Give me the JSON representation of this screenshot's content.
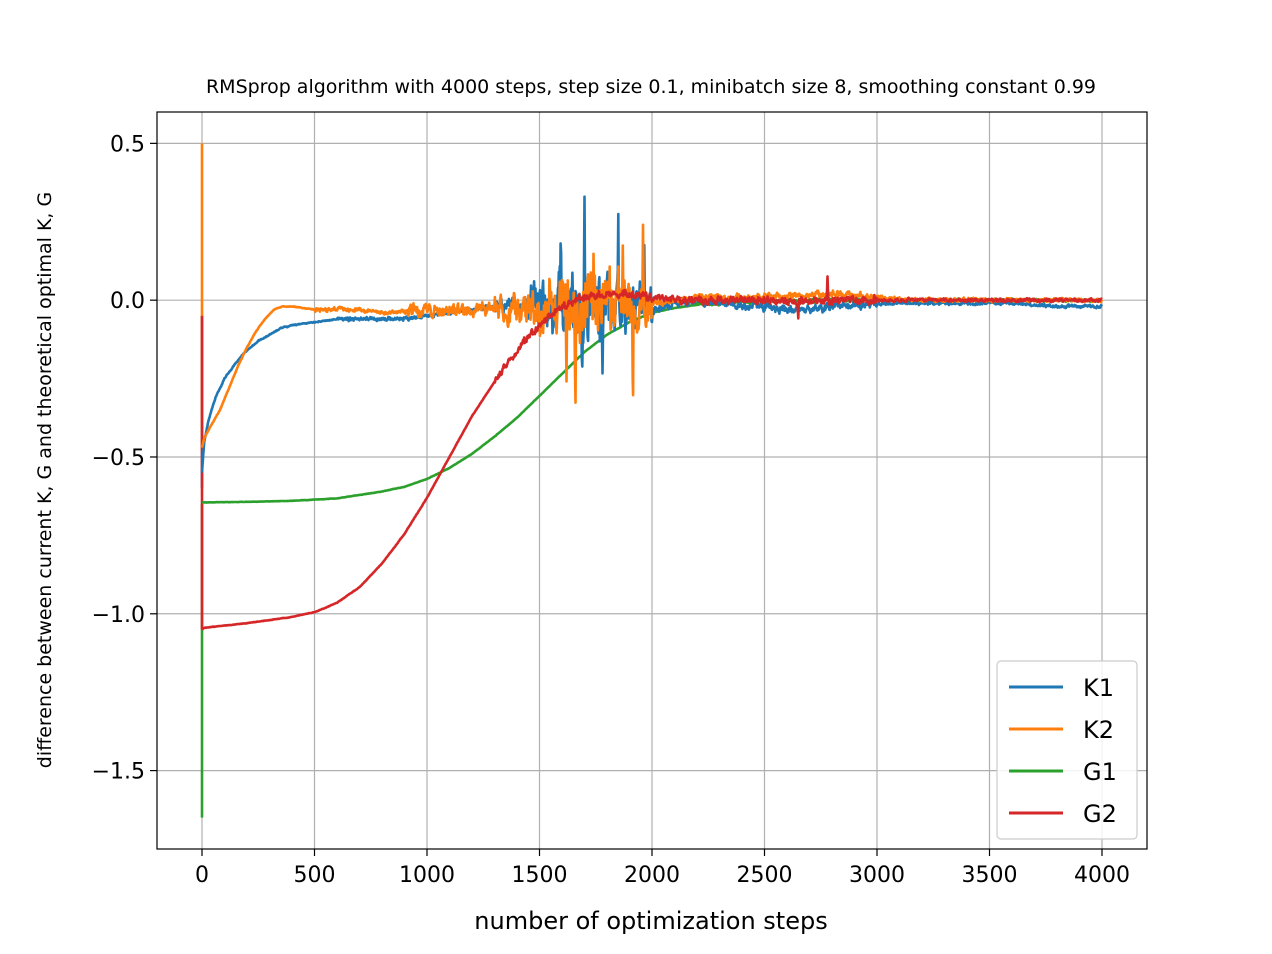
{
  "chart_data": {
    "type": "line",
    "title": "RMSprop algorithm with 4000 steps, step size 0.1, minibatch size 8, smoothing constant 0.99",
    "xlabel": "number of optimization steps",
    "ylabel": "difference between current K, G and theoretical optimal K, G",
    "xlim": [
      -200,
      4200
    ],
    "ylim": [
      -1.75,
      0.6
    ],
    "xticks": [
      0,
      500,
      1000,
      1500,
      2000,
      2500,
      3000,
      3500,
      4000
    ],
    "xtick_labels": [
      "0",
      "500",
      "1000",
      "1500",
      "2000",
      "2500",
      "3000",
      "3500",
      "4000"
    ],
    "yticks": [
      0.5,
      0.0,
      -0.5,
      -1.0,
      -1.5
    ],
    "ytick_labels": [
      "0.5",
      "0.0",
      "−0.5",
      "−1.0",
      "−1.5"
    ],
    "grid": true,
    "legend_position": "lower right",
    "series": [
      {
        "name": "K1",
        "color": "#1f77b4",
        "noise_profile": "K1",
        "x": [
          0,
          10,
          30,
          60,
          100,
          150,
          200,
          250,
          300,
          350,
          400,
          500,
          600,
          700,
          800,
          900,
          1000,
          1100,
          1200,
          1300,
          1400,
          1500,
          1600,
          1700,
          1800,
          1900,
          2000,
          2100,
          2200,
          2300,
          2400,
          2500,
          2600,
          2700,
          2800,
          2900,
          3000,
          3200,
          3400,
          3600,
          3800,
          4000
        ],
        "values": [
          -0.55,
          -0.45,
          -0.38,
          -0.31,
          -0.25,
          -0.2,
          -0.16,
          -0.13,
          -0.11,
          -0.09,
          -0.08,
          -0.07,
          -0.06,
          -0.06,
          -0.06,
          -0.06,
          -0.05,
          -0.04,
          -0.03,
          -0.02,
          -0.01,
          -0.01,
          -0.02,
          -0.02,
          -0.03,
          -0.03,
          -0.03,
          -0.01,
          0.0,
          -0.01,
          -0.02,
          -0.02,
          -0.03,
          -0.03,
          -0.02,
          -0.02,
          -0.01,
          -0.01,
          -0.01,
          -0.01,
          -0.02,
          -0.02
        ]
      },
      {
        "name": "K2",
        "color": "#ff7f0e",
        "noise_profile": "K2",
        "x": [
          0,
          10,
          40,
          80,
          120,
          160,
          200,
          240,
          280,
          320,
          360,
          400,
          500,
          600,
          700,
          800,
          1000,
          1200,
          1400,
          1500,
          1600,
          1700,
          1800,
          1900,
          2000,
          2200,
          2400,
          2600,
          2800,
          3000,
          3200,
          3400,
          3600,
          3800,
          4000
        ],
        "values": [
          -0.47,
          -0.44,
          -0.4,
          -0.35,
          -0.28,
          -0.21,
          -0.15,
          -0.1,
          -0.06,
          -0.03,
          -0.02,
          -0.02,
          -0.03,
          -0.03,
          -0.03,
          -0.04,
          -0.03,
          -0.03,
          -0.03,
          -0.03,
          -0.02,
          -0.01,
          -0.01,
          -0.02,
          -0.01,
          0.01,
          0.01,
          0.01,
          0.02,
          0.01,
          0.0,
          0.0,
          0.0,
          0.0,
          0.0
        ]
      },
      {
        "name": "G1",
        "color": "#2ca02c",
        "noise_profile": "G1",
        "x": [
          0,
          10,
          200,
          400,
          600,
          800,
          900,
          1000,
          1100,
          1200,
          1300,
          1400,
          1500,
          1600,
          1700,
          1800,
          1900,
          2000,
          2100,
          2200,
          2300,
          2400,
          2500,
          2600,
          2800,
          3000,
          3200,
          3500,
          4000
        ],
        "values": [
          -0.645,
          -0.645,
          -0.643,
          -0.64,
          -0.632,
          -0.61,
          -0.595,
          -0.57,
          -0.535,
          -0.49,
          -0.435,
          -0.375,
          -0.305,
          -0.235,
          -0.165,
          -0.11,
          -0.07,
          -0.04,
          -0.025,
          -0.015,
          -0.01,
          -0.005,
          -0.004,
          -0.003,
          0.0,
          0.0,
          0.0,
          0.0,
          0.0
        ]
      },
      {
        "name": "G2",
        "color": "#d62728",
        "noise_profile": "G2",
        "x": [
          0,
          10,
          200,
          400,
          500,
          600,
          700,
          800,
          900,
          1000,
          1100,
          1200,
          1300,
          1400,
          1500,
          1600,
          1700,
          1800,
          1900,
          2000,
          2100,
          2200,
          2300,
          2500,
          2800,
          3000,
          3200,
          3500,
          4000
        ],
        "values": [
          -1.05,
          -1.045,
          -1.03,
          -1.01,
          -0.995,
          -0.965,
          -0.915,
          -0.84,
          -0.745,
          -0.63,
          -0.5,
          -0.37,
          -0.26,
          -0.16,
          -0.08,
          -0.02,
          0.01,
          0.02,
          0.02,
          0.01,
          0.0,
          0.0,
          0.0,
          0.0,
          0.0,
          0.0,
          0.0,
          0.0,
          0.0
        ]
      }
    ],
    "transients": [
      {
        "series": "K1",
        "x": [
          0,
          0
        ],
        "values": [
          -0.05,
          -0.6
        ]
      },
      {
        "series": "K2",
        "x": [
          0,
          0
        ],
        "values": [
          0.5,
          -0.48
        ]
      },
      {
        "series": "G1",
        "x": [
          0,
          0
        ],
        "values": [
          -1.65,
          -0.65
        ]
      },
      {
        "series": "G2",
        "x": [
          0,
          0
        ],
        "values": [
          -0.05,
          -1.05
        ]
      }
    ]
  }
}
